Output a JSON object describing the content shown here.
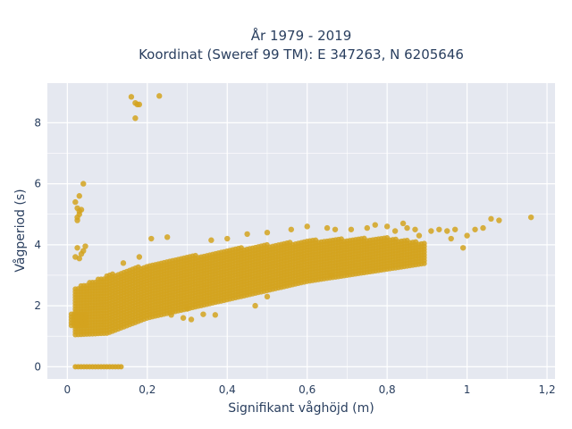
{
  "chart_data": {
    "type": "scatter",
    "title_line1": "År 1979 - 2019",
    "title_line2": "Koordinat (Sweref 99 TM): E 347263, N 6205646",
    "xlabel": "Signifikant våghöjd (m)",
    "ylabel": "Vågperiod (s)",
    "xlim": [
      -0.05,
      1.22
    ],
    "ylim": [
      -0.4,
      9.3
    ],
    "x_ticks": [
      0,
      0.2,
      0.4,
      0.6,
      0.8,
      1,
      1.2
    ],
    "x_tick_labels": [
      "0",
      "0,2",
      "0,4",
      "0,6",
      "0,8",
      "1",
      "1,2"
    ],
    "y_ticks": [
      0,
      2,
      4,
      6,
      8
    ],
    "y_tick_labels": [
      "0",
      "2",
      "4",
      "6",
      "8"
    ],
    "grid": true,
    "colors": {
      "marker": "#d4a31f",
      "plot_bg": "#e5e8f0",
      "grid": "#ffffff"
    },
    "dense_band": {
      "lower": [
        [
          0.02,
          1.05
        ],
        [
          0.1,
          1.1
        ],
        [
          0.2,
          1.6
        ],
        [
          0.4,
          2.2
        ],
        [
          0.6,
          2.8
        ],
        [
          0.8,
          3.2
        ],
        [
          0.9,
          3.4
        ]
      ],
      "upper": [
        [
          0.02,
          2.6
        ],
        [
          0.1,
          3.0
        ],
        [
          0.2,
          3.35
        ],
        [
          0.4,
          3.85
        ],
        [
          0.6,
          4.15
        ],
        [
          0.8,
          4.25
        ],
        [
          0.9,
          4.05
        ]
      ]
    },
    "zero_period_segment": {
      "x_start": 0.02,
      "x_end": 0.14,
      "y": 0
    },
    "calm_segment": {
      "x_start": 0.01,
      "x_end": 0.05,
      "y_min": 1.35,
      "y_max": 1.75
    },
    "outliers": [
      {
        "x": 0.16,
        "y": 8.85
      },
      {
        "x": 0.17,
        "y": 8.65
      },
      {
        "x": 0.175,
        "y": 8.6
      },
      {
        "x": 0.18,
        "y": 8.6
      },
      {
        "x": 0.17,
        "y": 8.15
      },
      {
        "x": 0.23,
        "y": 8.88
      },
      {
        "x": 0.04,
        "y": 6.0
      },
      {
        "x": 0.03,
        "y": 5.6
      },
      {
        "x": 0.025,
        "y": 5.2
      },
      {
        "x": 0.03,
        "y": 5.1
      },
      {
        "x": 0.025,
        "y": 4.9
      },
      {
        "x": 0.03,
        "y": 5.0
      },
      {
        "x": 0.035,
        "y": 5.15
      },
      {
        "x": 0.025,
        "y": 4.8
      },
      {
        "x": 0.02,
        "y": 5.4
      },
      {
        "x": 0.025,
        "y": 3.9
      },
      {
        "x": 0.04,
        "y": 3.8
      },
      {
        "x": 0.035,
        "y": 3.7
      },
      {
        "x": 0.02,
        "y": 3.6
      },
      {
        "x": 0.03,
        "y": 3.55
      },
      {
        "x": 0.045,
        "y": 3.95
      },
      {
        "x": 1.16,
        "y": 4.9
      },
      {
        "x": 1.06,
        "y": 4.85
      },
      {
        "x": 1.08,
        "y": 4.8
      },
      {
        "x": 1.04,
        "y": 4.55
      },
      {
        "x": 1.02,
        "y": 4.5
      },
      {
        "x": 1.0,
        "y": 4.3
      },
      {
        "x": 0.99,
        "y": 3.9
      },
      {
        "x": 0.97,
        "y": 4.5
      },
      {
        "x": 0.96,
        "y": 4.2
      },
      {
        "x": 0.95,
        "y": 4.45
      },
      {
        "x": 0.93,
        "y": 4.5
      },
      {
        "x": 0.91,
        "y": 4.45
      },
      {
        "x": 0.88,
        "y": 4.3
      },
      {
        "x": 0.87,
        "y": 4.5
      },
      {
        "x": 0.85,
        "y": 4.55
      },
      {
        "x": 0.84,
        "y": 4.7
      },
      {
        "x": 0.82,
        "y": 4.45
      },
      {
        "x": 0.8,
        "y": 4.6
      },
      {
        "x": 0.77,
        "y": 4.65
      },
      {
        "x": 0.75,
        "y": 4.55
      },
      {
        "x": 0.71,
        "y": 4.5
      },
      {
        "x": 0.67,
        "y": 4.5
      },
      {
        "x": 0.65,
        "y": 4.55
      },
      {
        "x": 0.6,
        "y": 4.6
      },
      {
        "x": 0.56,
        "y": 4.5
      },
      {
        "x": 0.5,
        "y": 4.4
      },
      {
        "x": 0.45,
        "y": 4.35
      },
      {
        "x": 0.4,
        "y": 4.2
      },
      {
        "x": 0.36,
        "y": 4.15
      },
      {
        "x": 0.25,
        "y": 4.25
      },
      {
        "x": 0.21,
        "y": 4.2
      },
      {
        "x": 0.18,
        "y": 3.6
      },
      {
        "x": 0.14,
        "y": 3.4
      },
      {
        "x": 0.34,
        "y": 1.72
      },
      {
        "x": 0.37,
        "y": 1.7
      },
      {
        "x": 0.31,
        "y": 1.55
      },
      {
        "x": 0.3,
        "y": 1.9
      },
      {
        "x": 0.29,
        "y": 1.6
      },
      {
        "x": 0.26,
        "y": 1.7
      },
      {
        "x": 0.47,
        "y": 2.0
      },
      {
        "x": 0.5,
        "y": 2.3
      },
      {
        "x": 0.66,
        "y": 3.0
      }
    ]
  }
}
